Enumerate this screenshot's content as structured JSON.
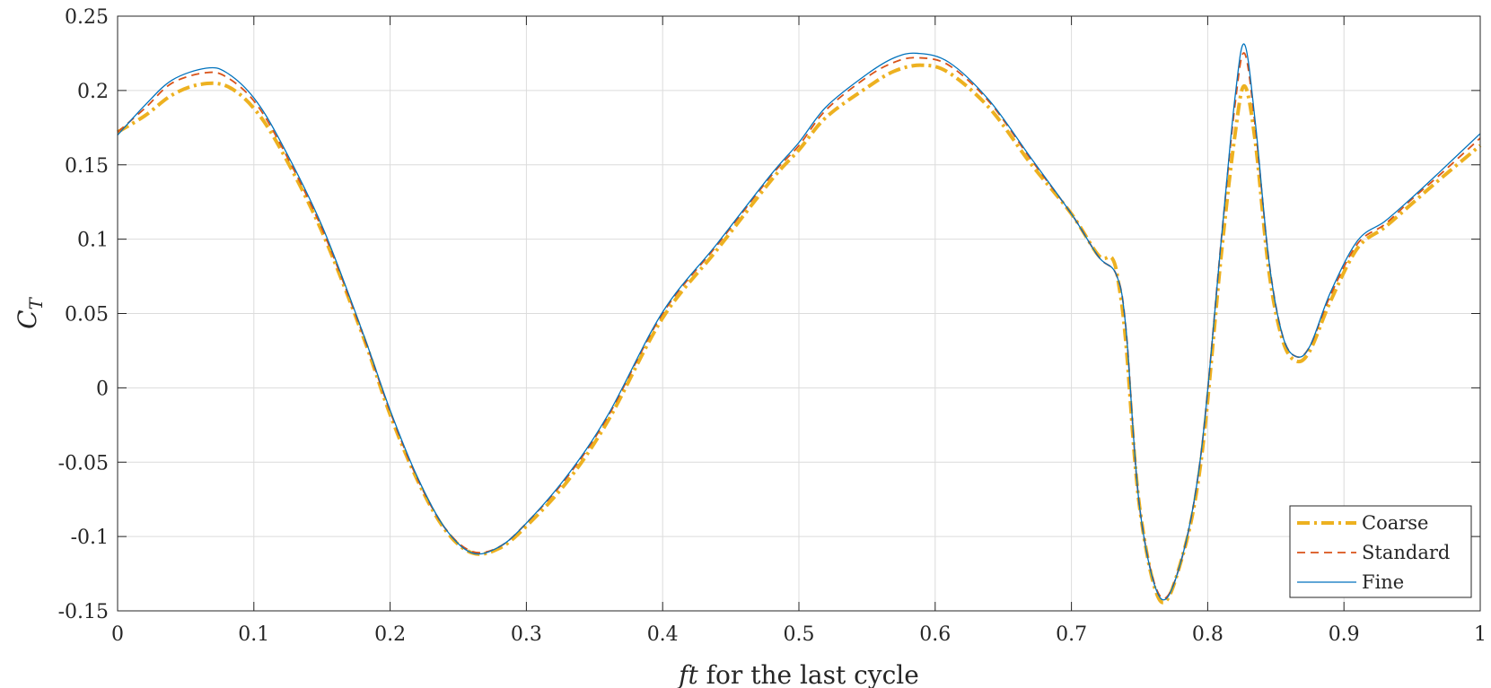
{
  "chart_data": {
    "type": "line",
    "xlabel": {
      "italic": "ft",
      "rest": " for the last cycle"
    },
    "ylabel": {
      "main": "C",
      "subscript": "T"
    },
    "xlim": [
      0,
      1
    ],
    "ylim": [
      -0.15,
      0.25
    ],
    "xticks": [
      0,
      0.1,
      0.2,
      0.3,
      0.4,
      0.5,
      0.6,
      0.7,
      0.8,
      0.9,
      1
    ],
    "xtick_labels": [
      "0",
      "0.1",
      "0.2",
      "0.3",
      "0.4",
      "0.5",
      "0.6",
      "0.7",
      "0.8",
      "0.9",
      "1"
    ],
    "yticks": [
      -0.15,
      -0.1,
      -0.05,
      0,
      0.05,
      0.1,
      0.15,
      0.2,
      0.25
    ],
    "ytick_labels": [
      "-0.15",
      "-0.1",
      "-0.05",
      "0",
      "0.05",
      "0.1",
      "0.15",
      "0.2",
      "0.25"
    ],
    "grid": true,
    "legend_position": "bottom-right",
    "series": [
      {
        "name": "Coarse",
        "color": "#EDB120",
        "style": "dash-dot",
        "points": [
          [
            0,
            0.172
          ],
          [
            0.02,
            0.183
          ],
          [
            0.04,
            0.197
          ],
          [
            0.06,
            0.204
          ],
          [
            0.08,
            0.203
          ],
          [
            0.1,
            0.188
          ],
          [
            0.12,
            0.16
          ],
          [
            0.15,
            0.105
          ],
          [
            0.18,
            0.035
          ],
          [
            0.2,
            -0.018
          ],
          [
            0.22,
            -0.062
          ],
          [
            0.24,
            -0.095
          ],
          [
            0.26,
            -0.111
          ],
          [
            0.28,
            -0.108
          ],
          [
            0.3,
            -0.093
          ],
          [
            0.33,
            -0.063
          ],
          [
            0.36,
            -0.022
          ],
          [
            0.4,
            0.047
          ],
          [
            0.44,
            0.093
          ],
          [
            0.48,
            0.14
          ],
          [
            0.5,
            0.16
          ],
          [
            0.52,
            0.182
          ],
          [
            0.55,
            0.202
          ],
          [
            0.57,
            0.213
          ],
          [
            0.59,
            0.217
          ],
          [
            0.61,
            0.212
          ],
          [
            0.64,
            0.188
          ],
          [
            0.67,
            0.151
          ],
          [
            0.7,
            0.117
          ],
          [
            0.72,
            0.089
          ],
          [
            0.73,
            0.087
          ],
          [
            0.735,
            0.068
          ],
          [
            0.74,
            0.03
          ],
          [
            0.75,
            -0.08
          ],
          [
            0.765,
            -0.143
          ],
          [
            0.78,
            -0.118
          ],
          [
            0.795,
            -0.05
          ],
          [
            0.81,
            0.09
          ],
          [
            0.82,
            0.17
          ],
          [
            0.827,
            0.203
          ],
          [
            0.835,
            0.165
          ],
          [
            0.845,
            0.078
          ],
          [
            0.855,
            0.032
          ],
          [
            0.865,
            0.018
          ],
          [
            0.875,
            0.025
          ],
          [
            0.89,
            0.058
          ],
          [
            0.91,
            0.094
          ],
          [
            0.93,
            0.108
          ],
          [
            0.95,
            0.124
          ],
          [
            0.97,
            0.14
          ],
          [
            1,
            0.163
          ]
        ]
      },
      {
        "name": "Standard",
        "color": "#D95319",
        "style": "dashed",
        "points": [
          [
            0,
            0.172
          ],
          [
            0.02,
            0.188
          ],
          [
            0.04,
            0.205
          ],
          [
            0.065,
            0.212
          ],
          [
            0.08,
            0.209
          ],
          [
            0.1,
            0.193
          ],
          [
            0.12,
            0.163
          ],
          [
            0.15,
            0.107
          ],
          [
            0.18,
            0.036
          ],
          [
            0.2,
            -0.016
          ],
          [
            0.22,
            -0.061
          ],
          [
            0.24,
            -0.094
          ],
          [
            0.26,
            -0.11
          ],
          [
            0.28,
            -0.107
          ],
          [
            0.3,
            -0.091
          ],
          [
            0.33,
            -0.06
          ],
          [
            0.36,
            -0.019
          ],
          [
            0.4,
            0.05
          ],
          [
            0.44,
            0.096
          ],
          [
            0.48,
            0.143
          ],
          [
            0.5,
            0.163
          ],
          [
            0.52,
            0.187
          ],
          [
            0.55,
            0.209
          ],
          [
            0.57,
            0.219
          ],
          [
            0.587,
            0.222
          ],
          [
            0.61,
            0.217
          ],
          [
            0.64,
            0.192
          ],
          [
            0.67,
            0.154
          ],
          [
            0.7,
            0.117
          ],
          [
            0.72,
            0.088
          ],
          [
            0.733,
            0.076
          ],
          [
            0.74,
            0.04
          ],
          [
            0.75,
            -0.08
          ],
          [
            0.765,
            -0.14
          ],
          [
            0.78,
            -0.118
          ],
          [
            0.795,
            -0.045
          ],
          [
            0.81,
            0.1
          ],
          [
            0.82,
            0.19
          ],
          [
            0.827,
            0.225
          ],
          [
            0.835,
            0.175
          ],
          [
            0.845,
            0.085
          ],
          [
            0.855,
            0.035
          ],
          [
            0.865,
            0.021
          ],
          [
            0.875,
            0.028
          ],
          [
            0.89,
            0.062
          ],
          [
            0.91,
            0.097
          ],
          [
            0.93,
            0.11
          ],
          [
            0.95,
            0.127
          ],
          [
            0.97,
            0.143
          ],
          [
            1,
            0.168
          ]
        ]
      },
      {
        "name": "Fine",
        "color": "#0072BD",
        "style": "solid",
        "points": [
          [
            0,
            0.17
          ],
          [
            0.02,
            0.19
          ],
          [
            0.04,
            0.207
          ],
          [
            0.065,
            0.215
          ],
          [
            0.08,
            0.212
          ],
          [
            0.1,
            0.195
          ],
          [
            0.12,
            0.165
          ],
          [
            0.15,
            0.109
          ],
          [
            0.18,
            0.037
          ],
          [
            0.2,
            -0.015
          ],
          [
            0.22,
            -0.06
          ],
          [
            0.24,
            -0.094
          ],
          [
            0.26,
            -0.111
          ],
          [
            0.28,
            -0.107
          ],
          [
            0.3,
            -0.091
          ],
          [
            0.33,
            -0.059
          ],
          [
            0.36,
            -0.018
          ],
          [
            0.4,
            0.051
          ],
          [
            0.44,
            0.097
          ],
          [
            0.48,
            0.144
          ],
          [
            0.5,
            0.165
          ],
          [
            0.52,
            0.189
          ],
          [
            0.55,
            0.211
          ],
          [
            0.57,
            0.222
          ],
          [
            0.587,
            0.225
          ],
          [
            0.61,
            0.219
          ],
          [
            0.64,
            0.193
          ],
          [
            0.67,
            0.155
          ],
          [
            0.7,
            0.117
          ],
          [
            0.72,
            0.088
          ],
          [
            0.733,
            0.076
          ],
          [
            0.74,
            0.04
          ],
          [
            0.75,
            -0.08
          ],
          [
            0.765,
            -0.141
          ],
          [
            0.78,
            -0.118
          ],
          [
            0.795,
            -0.045
          ],
          [
            0.81,
            0.1
          ],
          [
            0.82,
            0.195
          ],
          [
            0.827,
            0.231
          ],
          [
            0.835,
            0.178
          ],
          [
            0.845,
            0.085
          ],
          [
            0.855,
            0.035
          ],
          [
            0.865,
            0.021
          ],
          [
            0.875,
            0.028
          ],
          [
            0.89,
            0.064
          ],
          [
            0.91,
            0.099
          ],
          [
            0.93,
            0.112
          ],
          [
            0.95,
            0.128
          ],
          [
            0.97,
            0.145
          ],
          [
            1,
            0.171
          ]
        ]
      }
    ]
  }
}
